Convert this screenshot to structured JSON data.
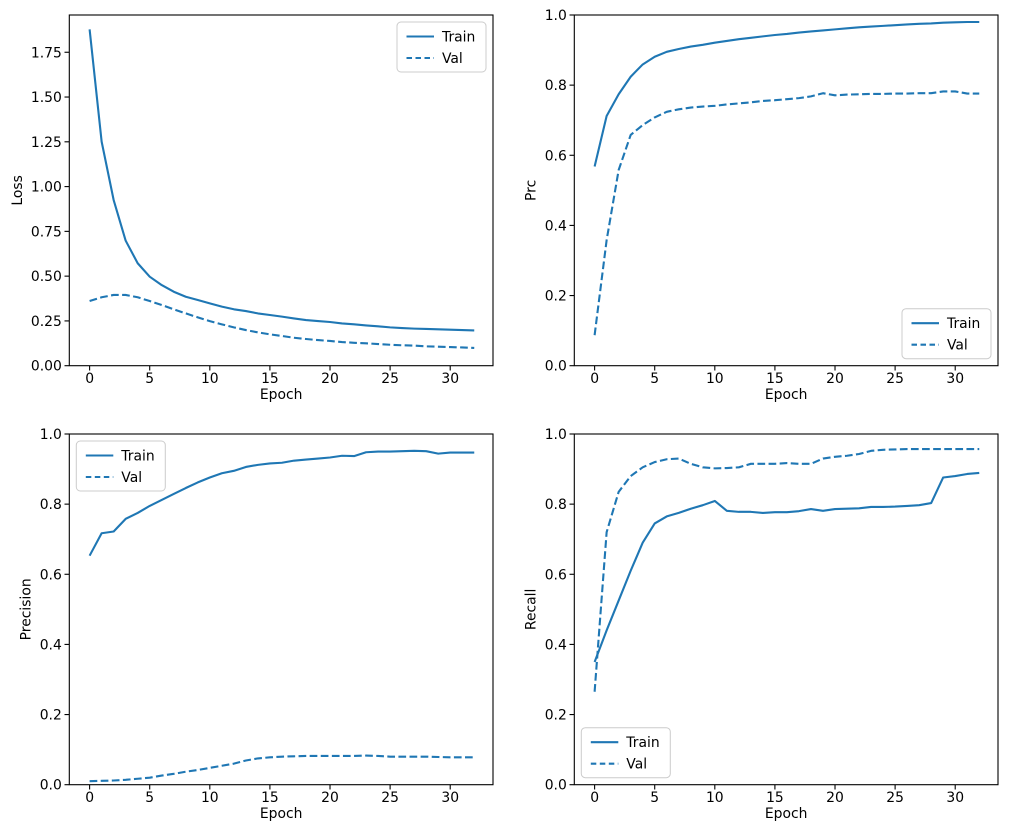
{
  "figure": {
    "background": "#ffffff",
    "line_color": "#1f77b4",
    "axes_color": "#000000",
    "grid": false,
    "layout": "2x2 subplots, training-history curves"
  },
  "chart_data": [
    {
      "type": "line",
      "id": "loss",
      "title": "",
      "xlabel": "Epoch",
      "ylabel": "Loss",
      "x": [
        0,
        1,
        2,
        3,
        4,
        5,
        6,
        7,
        8,
        9,
        10,
        11,
        12,
        13,
        14,
        15,
        16,
        17,
        18,
        19,
        20,
        21,
        22,
        23,
        24,
        25,
        26,
        27,
        28,
        29,
        30,
        31,
        32
      ],
      "series": [
        {
          "name": "Train",
          "line_style": "solid",
          "color": "#1f77b4",
          "values": [
            1.878,
            1.251,
            0.925,
            0.698,
            0.572,
            0.497,
            0.45,
            0.413,
            0.385,
            0.367,
            0.348,
            0.33,
            0.315,
            0.305,
            0.292,
            0.283,
            0.274,
            0.264,
            0.255,
            0.249,
            0.244,
            0.236,
            0.231,
            0.225,
            0.22,
            0.214,
            0.21,
            0.207,
            0.205,
            0.203,
            0.201,
            0.199,
            0.197
          ]
        },
        {
          "name": "Val",
          "line_style": "dashed",
          "color": "#1f77b4",
          "values": [
            0.361,
            0.382,
            0.395,
            0.395,
            0.382,
            0.361,
            0.339,
            0.315,
            0.292,
            0.27,
            0.249,
            0.231,
            0.214,
            0.199,
            0.186,
            0.175,
            0.166,
            0.156,
            0.149,
            0.143,
            0.138,
            0.132,
            0.128,
            0.125,
            0.121,
            0.117,
            0.114,
            0.112,
            0.108,
            0.106,
            0.104,
            0.102,
            0.099
          ]
        }
      ],
      "xlim": [
        -1.69,
        33.56
      ],
      "ylim": [
        0,
        1.958
      ],
      "xticks": {
        "values": [
          0,
          5,
          10,
          15,
          20,
          25,
          30
        ],
        "labels": [
          "0",
          "5",
          "10",
          "15",
          "20",
          "25",
          "30"
        ]
      },
      "yticks": {
        "values": [
          0,
          0.25,
          0.5,
          0.75,
          1.0,
          1.25,
          1.5,
          1.75
        ],
        "labels": [
          "0.00",
          "0.25",
          "0.50",
          "0.75",
          "1.00",
          "1.25",
          "1.50",
          "1.75"
        ]
      },
      "legend": {
        "position": "upper-right",
        "entries": [
          "Train",
          "Val"
        ]
      }
    },
    {
      "type": "line",
      "id": "prc",
      "title": "",
      "xlabel": "Epoch",
      "ylabel": "Prc",
      "x": [
        0,
        1,
        2,
        3,
        4,
        5,
        6,
        7,
        8,
        9,
        10,
        11,
        12,
        13,
        14,
        15,
        16,
        17,
        18,
        19,
        20,
        21,
        22,
        23,
        24,
        25,
        26,
        27,
        28,
        29,
        30,
        31,
        32
      ],
      "series": [
        {
          "name": "Train",
          "line_style": "solid",
          "color": "#1f77b4",
          "values": [
            0.568,
            0.712,
            0.774,
            0.824,
            0.859,
            0.881,
            0.895,
            0.903,
            0.91,
            0.915,
            0.921,
            0.926,
            0.931,
            0.935,
            0.939,
            0.943,
            0.946,
            0.95,
            0.953,
            0.956,
            0.959,
            0.962,
            0.965,
            0.967,
            0.969,
            0.971,
            0.973,
            0.975,
            0.976,
            0.978,
            0.979,
            0.98,
            0.98
          ]
        },
        {
          "name": "Val",
          "line_style": "dashed",
          "color": "#1f77b4",
          "values": [
            0.087,
            0.358,
            0.558,
            0.658,
            0.686,
            0.708,
            0.724,
            0.731,
            0.736,
            0.739,
            0.741,
            0.745,
            0.748,
            0.751,
            0.755,
            0.757,
            0.76,
            0.763,
            0.768,
            0.777,
            0.771,
            0.773,
            0.774,
            0.775,
            0.775,
            0.776,
            0.776,
            0.777,
            0.777,
            0.782,
            0.782,
            0.776,
            0.776
          ]
        }
      ],
      "xlim": [
        -1.69,
        33.56
      ],
      "ylim": [
        0,
        1.0
      ],
      "xticks": {
        "values": [
          0,
          5,
          10,
          15,
          20,
          25,
          30
        ],
        "labels": [
          "0",
          "5",
          "10",
          "15",
          "20",
          "25",
          "30"
        ]
      },
      "yticks": {
        "values": [
          0,
          0.2,
          0.4,
          0.6,
          0.8,
          1.0
        ],
        "labels": [
          "0.0",
          "0.2",
          "0.4",
          "0.6",
          "0.8",
          "1.0"
        ]
      },
      "legend": {
        "position": "lower-right",
        "entries": [
          "Train",
          "Val"
        ]
      }
    },
    {
      "type": "line",
      "id": "precision",
      "title": "",
      "xlabel": "Epoch",
      "ylabel": "Precision",
      "x": [
        0,
        1,
        2,
        3,
        4,
        5,
        6,
        7,
        8,
        9,
        10,
        11,
        12,
        13,
        14,
        15,
        16,
        17,
        18,
        19,
        20,
        21,
        22,
        23,
        24,
        25,
        26,
        27,
        28,
        29,
        30,
        31,
        32
      ],
      "series": [
        {
          "name": "Train",
          "line_style": "solid",
          "color": "#1f77b4",
          "values": [
            0.653,
            0.717,
            0.722,
            0.758,
            0.775,
            0.795,
            0.812,
            0.829,
            0.846,
            0.862,
            0.876,
            0.888,
            0.895,
            0.906,
            0.912,
            0.916,
            0.918,
            0.924,
            0.927,
            0.93,
            0.933,
            0.938,
            0.937,
            0.948,
            0.95,
            0.95,
            0.951,
            0.952,
            0.951,
            0.944,
            0.947,
            0.947,
            0.947
          ]
        },
        {
          "name": "Val",
          "line_style": "dashed",
          "color": "#1f77b4",
          "values": [
            0.01,
            0.011,
            0.012,
            0.014,
            0.017,
            0.02,
            0.026,
            0.031,
            0.037,
            0.042,
            0.048,
            0.054,
            0.06,
            0.069,
            0.075,
            0.078,
            0.08,
            0.081,
            0.082,
            0.082,
            0.082,
            0.082,
            0.082,
            0.083,
            0.082,
            0.08,
            0.08,
            0.08,
            0.08,
            0.079,
            0.078,
            0.078,
            0.078
          ]
        }
      ],
      "xlim": [
        -1.69,
        33.56
      ],
      "ylim": [
        0,
        1.0
      ],
      "xticks": {
        "values": [
          0,
          5,
          10,
          15,
          20,
          25,
          30
        ],
        "labels": [
          "0",
          "5",
          "10",
          "15",
          "20",
          "25",
          "30"
        ]
      },
      "yticks": {
        "values": [
          0,
          0.2,
          0.4,
          0.6,
          0.8,
          1.0
        ],
        "labels": [
          "0.0",
          "0.2",
          "0.4",
          "0.6",
          "0.8",
          "1.0"
        ]
      },
      "legend": {
        "position": "upper-left",
        "entries": [
          "Train",
          "Val"
        ]
      }
    },
    {
      "type": "line",
      "id": "recall",
      "title": "",
      "xlabel": "Epoch",
      "ylabel": "Recall",
      "x": [
        0,
        1,
        2,
        3,
        4,
        5,
        6,
        7,
        8,
        9,
        10,
        11,
        12,
        13,
        14,
        15,
        16,
        17,
        18,
        19,
        20,
        21,
        22,
        23,
        24,
        25,
        26,
        27,
        28,
        29,
        30,
        31,
        32
      ],
      "series": [
        {
          "name": "Train",
          "line_style": "solid",
          "color": "#1f77b4",
          "values": [
            0.35,
            0.44,
            0.525,
            0.61,
            0.69,
            0.745,
            0.765,
            0.775,
            0.787,
            0.797,
            0.809,
            0.781,
            0.778,
            0.778,
            0.775,
            0.777,
            0.777,
            0.78,
            0.786,
            0.781,
            0.786,
            0.787,
            0.788,
            0.792,
            0.792,
            0.793,
            0.795,
            0.797,
            0.803,
            0.876,
            0.88,
            0.886,
            0.889
          ]
        },
        {
          "name": "Val",
          "line_style": "dashed",
          "color": "#1f77b4",
          "values": [
            0.265,
            0.72,
            0.835,
            0.88,
            0.905,
            0.92,
            0.928,
            0.93,
            0.915,
            0.905,
            0.902,
            0.903,
            0.905,
            0.915,
            0.915,
            0.915,
            0.917,
            0.915,
            0.915,
            0.93,
            0.935,
            0.938,
            0.943,
            0.952,
            0.955,
            0.956,
            0.957,
            0.957,
            0.957,
            0.957,
            0.957,
            0.957,
            0.957
          ]
        }
      ],
      "xlim": [
        -1.69,
        33.56
      ],
      "ylim": [
        0,
        1.0
      ],
      "xticks": {
        "values": [
          0,
          5,
          10,
          15,
          20,
          25,
          30
        ],
        "labels": [
          "0",
          "5",
          "10",
          "15",
          "20",
          "25",
          "30"
        ]
      },
      "yticks": {
        "values": [
          0,
          0.2,
          0.4,
          0.6,
          0.8,
          1.0
        ],
        "labels": [
          "0.0",
          "0.2",
          "0.4",
          "0.6",
          "0.8",
          "1.0"
        ]
      },
      "legend": {
        "position": "lower-left",
        "entries": [
          "Train",
          "Val"
        ]
      }
    }
  ]
}
